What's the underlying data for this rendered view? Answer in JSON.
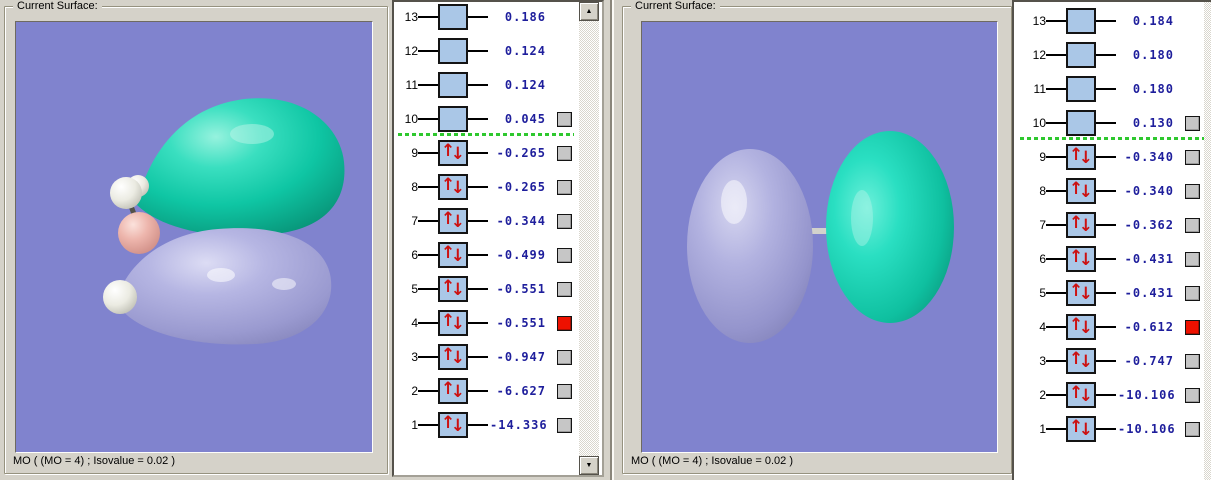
{
  "left_window": {
    "group_label": "Current Surface:",
    "status_text": "MO ( (MO = 4) ; Isovalue = 0.02 )",
    "mo_levels": [
      {
        "n": "13",
        "energy": "0.186",
        "occupied": false,
        "has_checkbox": false,
        "selected": false
      },
      {
        "n": "12",
        "energy": "0.124",
        "occupied": false,
        "has_checkbox": false,
        "selected": false
      },
      {
        "n": "11",
        "energy": "0.124",
        "occupied": false,
        "has_checkbox": false,
        "selected": false
      },
      {
        "n": "10",
        "energy": "0.045",
        "occupied": false,
        "has_checkbox": true,
        "selected": false
      },
      {
        "n": "9",
        "energy": "-0.265",
        "occupied": true,
        "has_checkbox": true,
        "selected": false
      },
      {
        "n": "8",
        "energy": "-0.265",
        "occupied": true,
        "has_checkbox": true,
        "selected": false
      },
      {
        "n": "7",
        "energy": "-0.344",
        "occupied": true,
        "has_checkbox": true,
        "selected": false
      },
      {
        "n": "6",
        "energy": "-0.499",
        "occupied": true,
        "has_checkbox": true,
        "selected": false
      },
      {
        "n": "5",
        "energy": "-0.551",
        "occupied": true,
        "has_checkbox": true,
        "selected": false
      },
      {
        "n": "4",
        "energy": "-0.551",
        "occupied": true,
        "has_checkbox": true,
        "selected": true
      },
      {
        "n": "3",
        "energy": "-0.947",
        "occupied": true,
        "has_checkbox": true,
        "selected": false
      },
      {
        "n": "2",
        "energy": "-6.627",
        "occupied": true,
        "has_checkbox": true,
        "selected": false
      },
      {
        "n": "1",
        "energy": "-14.336",
        "occupied": true,
        "has_checkbox": true,
        "selected": false
      }
    ]
  },
  "right_window": {
    "group_label": "Current Surface:",
    "status_text": "MO ( (MO = 4) ; Isovalue = 0.02 )",
    "mo_levels": [
      {
        "n": "13",
        "energy": "0.184",
        "occupied": false,
        "has_checkbox": false,
        "selected": false
      },
      {
        "n": "12",
        "energy": "0.180",
        "occupied": false,
        "has_checkbox": false,
        "selected": false
      },
      {
        "n": "11",
        "energy": "0.180",
        "occupied": false,
        "has_checkbox": false,
        "selected": false
      },
      {
        "n": "10",
        "energy": "0.130",
        "occupied": false,
        "has_checkbox": true,
        "selected": false
      },
      {
        "n": "9",
        "energy": "-0.340",
        "occupied": true,
        "has_checkbox": true,
        "selected": false
      },
      {
        "n": "8",
        "energy": "-0.340",
        "occupied": true,
        "has_checkbox": true,
        "selected": false
      },
      {
        "n": "7",
        "energy": "-0.362",
        "occupied": true,
        "has_checkbox": true,
        "selected": false
      },
      {
        "n": "6",
        "energy": "-0.431",
        "occupied": true,
        "has_checkbox": true,
        "selected": false
      },
      {
        "n": "5",
        "energy": "-0.431",
        "occupied": true,
        "has_checkbox": true,
        "selected": false
      },
      {
        "n": "4",
        "energy": "-0.612",
        "occupied": true,
        "has_checkbox": true,
        "selected": true
      },
      {
        "n": "3",
        "energy": "-0.747",
        "occupied": true,
        "has_checkbox": true,
        "selected": false
      },
      {
        "n": "2",
        "energy": "-10.106",
        "occupied": true,
        "has_checkbox": true,
        "selected": false
      },
      {
        "n": "1",
        "energy": "-10.106",
        "occupied": true,
        "has_checkbox": true,
        "selected": false
      }
    ]
  },
  "icons": {
    "spin_up": "↑",
    "spin_down": "↓",
    "scroll_up": "▲",
    "scroll_down": "▼"
  },
  "colors": {
    "viewport_bg": "#8083ce",
    "positive_lobe": "#10c8a2",
    "negative_lobe": "#a6a6d8",
    "mo_box_fill": "#aac7e7",
    "energy_text": "#1e1e9c",
    "divider_green": "#2ec82e",
    "selected_checkbox": "#ee1100",
    "spin_arrow": "#cc1111"
  }
}
